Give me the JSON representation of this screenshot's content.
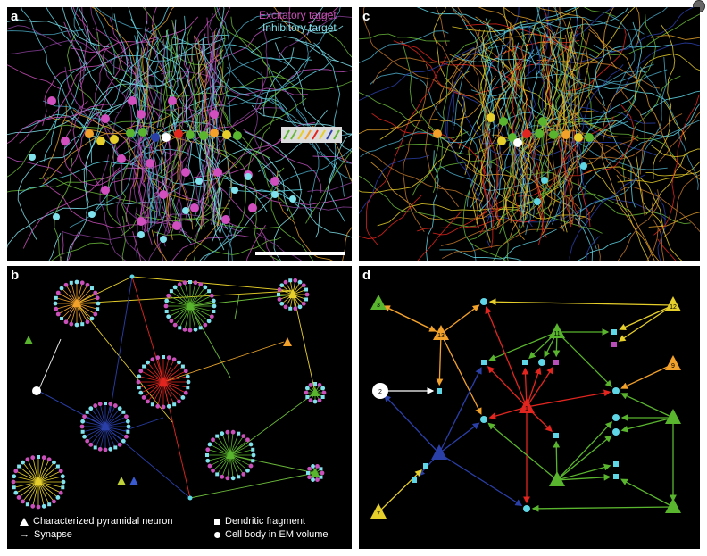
{
  "figure": {
    "panels": {
      "a": {
        "label": "a",
        "legend_exc": "Excitatory target",
        "legend_inh": "Inhibitory target",
        "exc_color": "#d24fbf",
        "inh_color": "#7fe2ec"
      },
      "b": {
        "label": "b"
      },
      "c": {
        "label": "c"
      },
      "d": {
        "label": "d"
      }
    },
    "legend_b": {
      "pyramidal": "Characterized pyramidal neuron",
      "dendritic": "Dendritic fragment",
      "synapse": "Synapse",
      "cellbody": "Cell body in EM volume"
    },
    "node_colors": {
      "orange": "#f2a12a",
      "green": "#5ab52e",
      "red": "#e2261f",
      "blue": "#2a3fa8",
      "yellow": "#e6cf2a",
      "cyan": "#5fd6e6",
      "magenta": "#b84fb8"
    },
    "d_labels": {
      "n3": "3",
      "n13": "13",
      "n12": "12",
      "n11": "11",
      "n2": "2",
      "n9": "9",
      "n1": "1",
      "n7": "7"
    }
  }
}
